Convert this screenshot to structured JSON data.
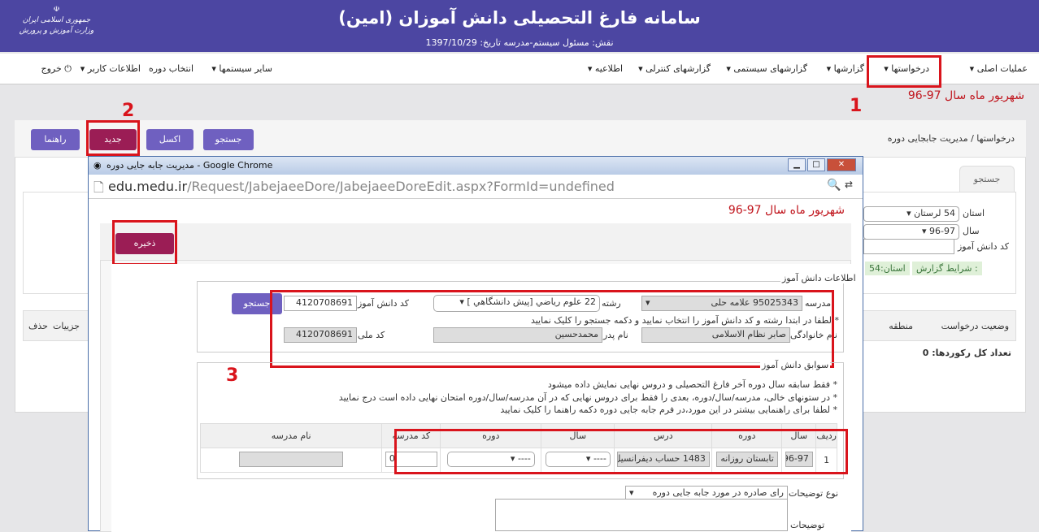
{
  "header": {
    "title": "سامانه فارغ التحصیلی دانش آموزان (امین)",
    "subtitle": "نقش: مسئول سیستم-مدرسه   تاریخ: 1397/10/29",
    "logo_text": "جمهوری اسلامی ایران وزارت آموزش و پرورش"
  },
  "nav": {
    "items": [
      "عملیات اصلی",
      "درخواستها",
      "گزارشها",
      "گزارشهای سیستمی",
      "گزارشهای کنترلی",
      "اطلاعیه",
      "سایر سیستمها",
      "انتخاب دوره",
      "اطلاعات کاربر",
      "خروج"
    ]
  },
  "period": "شهریور ماه سال 97-96",
  "annotations": [
    "1",
    "2",
    "3"
  ],
  "page": {
    "breadcrumb": "درخواستها / مدیریت جابجایی دوره",
    "buttons": {
      "search": "جستجو",
      "excel": "اکسل",
      "new": "جدید",
      "help": "راهنما"
    },
    "search_tab": "جستجو",
    "province_label": "استان",
    "province_value": "54 لرستان",
    "year_label": "سال",
    "year_value": "96-97",
    "student_code_label": "کد دانش آموز",
    "student_code_value": "",
    "report_conditions": "شرایط گزارش :",
    "report_province": "استان:54",
    "columns": [
      "وضعیت درخواست",
      "منطقه",
      "جزییات",
      "حذف"
    ],
    "total": "تعداد کل رکوردها: 0"
  },
  "popup": {
    "window_title": "مدیریت جابه جایی دوره - Google Chrome",
    "url_host": "edu.medu.ir",
    "url_path": "/Request/JabejaeeDore/JabejaeeDoreEdit.aspx?FormId=undefined",
    "period": "شهریور ماه سال 97-96",
    "save": "ذخیره",
    "student_info": {
      "legend": "اطلاعات دانش آموز",
      "school_label": "مدرسه",
      "school_value": "95025343 علامه حلی",
      "major_label": "رشته",
      "major_value": "22 علوم رياضي [پيش دانشگاهي ]",
      "code_label": "کد دانش آموز",
      "code_value": "4120708691",
      "search": "جستجو",
      "hint": "* لطفا در ابتدا رشته و کد دانش آموز را انتخاب نمایید و دکمه جستجو را کلیک نمایید",
      "family_label": "نام خانوادگی",
      "family_value": "صابر نظام الاسلامی",
      "father_label": "نام پدر",
      "father_value": "محمدحسین",
      "national_label": "کد ملی",
      "national_value": "4120708691"
    },
    "history": {
      "legend": "سوابق دانش آموز",
      "notes": [
        "* فقط سابقه سال دوره آخر فارغ التحصیلی و دروس نهایی نمایش داده میشود",
        "* در ستونهای خالی، مدرسه/سال/دوره، بعدی را فقط برای دروس نهایی که در آن مدرسه/سال/دوره امتحان نهایی داده است درج نمایید",
        "* لطفا برای راهنمایی بیشتر در این مورد،در فرم جابه جایی دوره دکمه راهنما را کلیک نمایید"
      ],
      "columns": [
        "ردیف",
        "سال",
        "دوره",
        "درس",
        "سال",
        "دوره",
        "کد مدرسه",
        "نام مدرسه"
      ],
      "row": {
        "index": "1",
        "year": "96-97",
        "period": "تابستان روزانه",
        "course": "1483 حساب دیفرانسیل و",
        "new_year": "----",
        "new_period": "----",
        "school_code": "0",
        "school_name": ""
      }
    },
    "desc_type_label": "نوع توضیحات",
    "desc_type_value": "رای صادره در مورد جابه جایی دوره",
    "desc_label": "توضیحات"
  }
}
